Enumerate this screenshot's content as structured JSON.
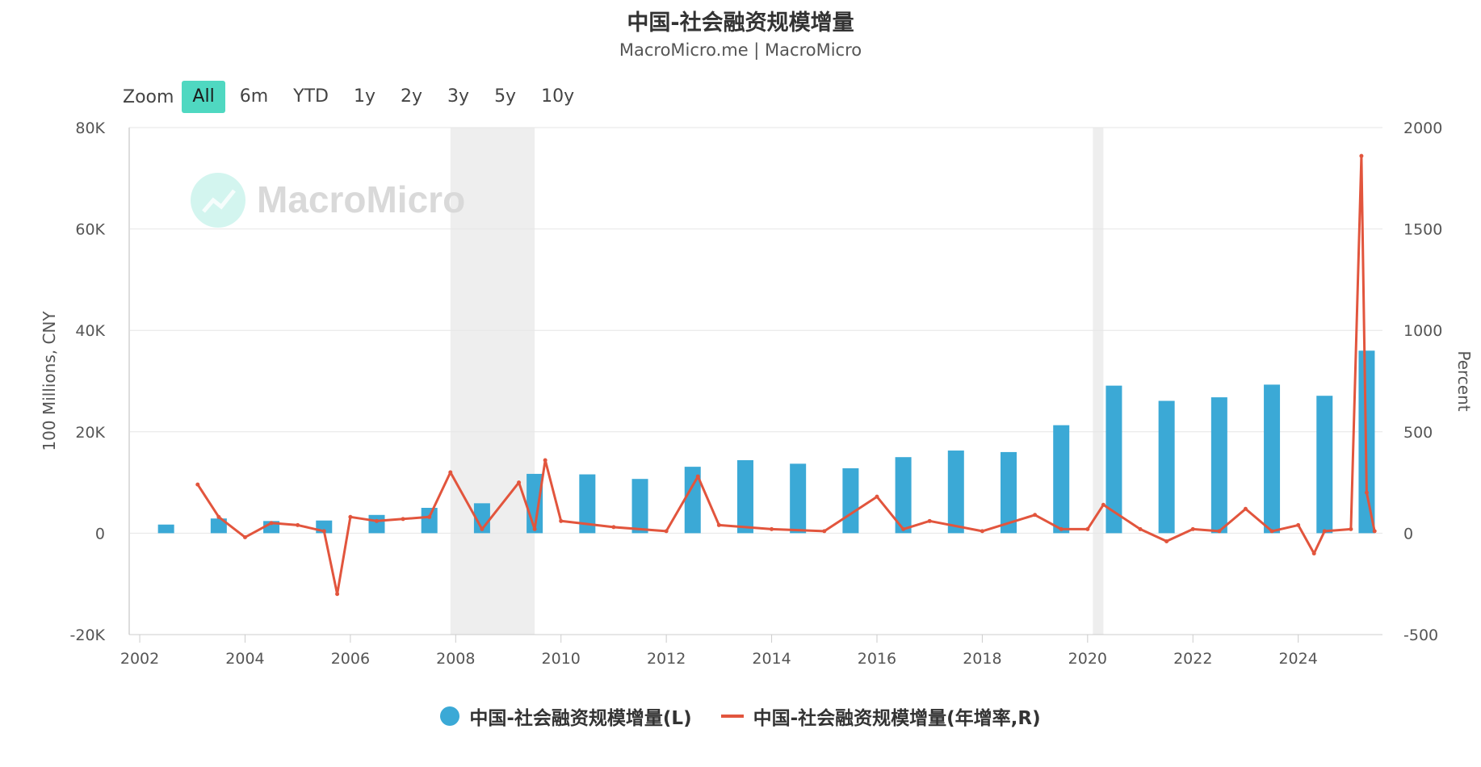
{
  "title": "中国-社会融资规模增量",
  "subtitle": "MacroMicro.me | MacroMicro",
  "zoom": {
    "label": "Zoom",
    "buttons": [
      "All",
      "6m",
      "YTD",
      "1y",
      "2y",
      "3y",
      "5y",
      "10y"
    ],
    "active": "All"
  },
  "watermark": "MacroMicro",
  "colors": {
    "bar": "#3ba9d6",
    "line": "#e2553d",
    "shade": "#eeeeee",
    "accent": "#4fd8c1"
  },
  "chart_data": {
    "type": "bar",
    "xlabel": "",
    "x_ticks": [
      "2002",
      "2004",
      "2006",
      "2008",
      "2010",
      "2012",
      "2014",
      "2016",
      "2018",
      "2020",
      "2022",
      "2024"
    ],
    "y_left": {
      "label": "100 Millions, CNY",
      "range": [
        -20000,
        80000
      ],
      "ticks": [
        "-20K",
        "0",
        "20K",
        "40K",
        "60K",
        "80K"
      ]
    },
    "y_right": {
      "label": "Percent",
      "range": [
        -500,
        2000
      ],
      "ticks": [
        "-500",
        "0",
        "500",
        "1000",
        "1500",
        "2000"
      ]
    },
    "x_range": [
      2001.8,
      2025.6
    ],
    "shaded_periods": [
      [
        2007.9,
        2009.5
      ],
      [
        2020.1,
        2020.3
      ]
    ],
    "legend_position": "bottom-center",
    "series": [
      {
        "name": "中国-社会融资规模增量(L)",
        "type": "bar",
        "axis": "left",
        "x": [
          2002.5,
          2003.5,
          2004.5,
          2005.5,
          2006.5,
          2007.5,
          2008.5,
          2009.5,
          2010.5,
          2011.5,
          2012.5,
          2013.5,
          2014.5,
          2015.5,
          2016.5,
          2017.5,
          2018.5,
          2019.5,
          2020.5,
          2021.5,
          2022.5,
          2023.5,
          2024.5,
          2025.3
        ],
        "values": [
          1700,
          2900,
          2400,
          2500,
          3600,
          5000,
          5900,
          11700,
          11600,
          10700,
          13100,
          14400,
          13700,
          12800,
          15000,
          16300,
          16000,
          21300,
          29100,
          26100,
          26800,
          29300,
          27100,
          36000
        ]
      },
      {
        "name": "中国-社会融资规模增量(年增率,R)",
        "type": "line",
        "axis": "right",
        "x": [
          2003.1,
          2003.5,
          2004.0,
          2004.5,
          2005.0,
          2005.5,
          2005.75,
          2006.0,
          2006.5,
          2007.0,
          2007.5,
          2007.9,
          2008.5,
          2009.2,
          2009.5,
          2009.7,
          2010.0,
          2011.0,
          2012.0,
          2012.6,
          2013.0,
          2014.0,
          2015.0,
          2016.0,
          2016.5,
          2017.0,
          2018.0,
          2019.0,
          2019.5,
          2020.0,
          2020.3,
          2021.0,
          2021.5,
          2022.0,
          2022.5,
          2023.0,
          2023.5,
          2024.0,
          2024.3,
          2024.5,
          2025.0,
          2025.2,
          2025.3,
          2025.45
        ],
        "values": [
          240,
          80,
          -20,
          50,
          40,
          10,
          -300,
          80,
          60,
          70,
          80,
          300,
          20,
          250,
          20,
          360,
          60,
          30,
          10,
          280,
          40,
          20,
          10,
          180,
          20,
          60,
          10,
          90,
          20,
          20,
          140,
          20,
          -40,
          20,
          10,
          120,
          10,
          40,
          -100,
          10,
          20,
          1860,
          200,
          10
        ]
      }
    ]
  }
}
